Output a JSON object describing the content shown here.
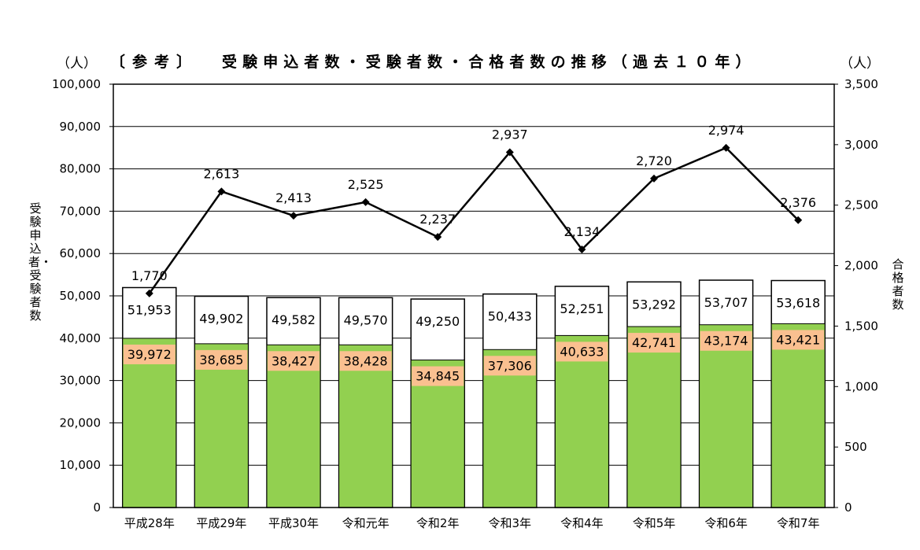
{
  "title": {
    "prefix": "〔参考〕",
    "main": "受験申込者数・受験者数・合格者数の推移（過去１０年）"
  },
  "units": {
    "left": "（人）",
    "right": "（人）"
  },
  "axis_titles": {
    "left": "受験申込者・受験者数",
    "right": "合格者数"
  },
  "chart_data": {
    "type": "bar+line",
    "categories": [
      "平成28年",
      "平成29年",
      "平成30年",
      "令和元年",
      "令和2年",
      "令和3年",
      "令和4年",
      "令和5年",
      "令和6年",
      "令和7年"
    ],
    "series": [
      {
        "name": "受験申込者数",
        "type": "bar",
        "axis": "left",
        "values": [
          51953,
          49902,
          49582,
          49570,
          49250,
          50433,
          52251,
          53292,
          53707,
          53618
        ],
        "labels": [
          "51,953",
          "49,902",
          "49,582",
          "49,570",
          "49,250",
          "50,433",
          "52,251",
          "53,292",
          "53,707",
          "53,618"
        ]
      },
      {
        "name": "受験者数",
        "type": "bar",
        "axis": "left",
        "values": [
          39972,
          38685,
          38427,
          38428,
          34845,
          37306,
          40633,
          42741,
          43174,
          43421
        ],
        "labels": [
          "39,972",
          "38,685",
          "38,427",
          "38,428",
          "34,845",
          "37,306",
          "40,633",
          "42,741",
          "43,174",
          "43,421"
        ]
      },
      {
        "name": "合格者数",
        "type": "line",
        "axis": "right",
        "values": [
          1770,
          2613,
          2413,
          2525,
          2237,
          2937,
          2134,
          2720,
          2974,
          2376
        ],
        "labels": [
          "1,770",
          "2,613",
          "2,413",
          "2,525",
          "2,237",
          "2,937",
          "2,134",
          "2,720",
          "2,974",
          "2,376"
        ]
      }
    ],
    "y_left": {
      "min": 0,
      "max": 100000,
      "step": 10000,
      "ticks": [
        "0",
        "10,000",
        "20,000",
        "30,000",
        "40,000",
        "50,000",
        "60,000",
        "70,000",
        "80,000",
        "90,000",
        "100,000"
      ]
    },
    "y_right": {
      "min": 0,
      "max": 3500,
      "step": 500,
      "ticks": [
        "0",
        "500",
        "1,000",
        "1,500",
        "2,000",
        "2,500",
        "3,000",
        "3,500"
      ]
    },
    "colors": {
      "applicants": "#ffffff",
      "examinees": "#92d050",
      "label_box": "#fac090",
      "line": "#000000"
    }
  }
}
